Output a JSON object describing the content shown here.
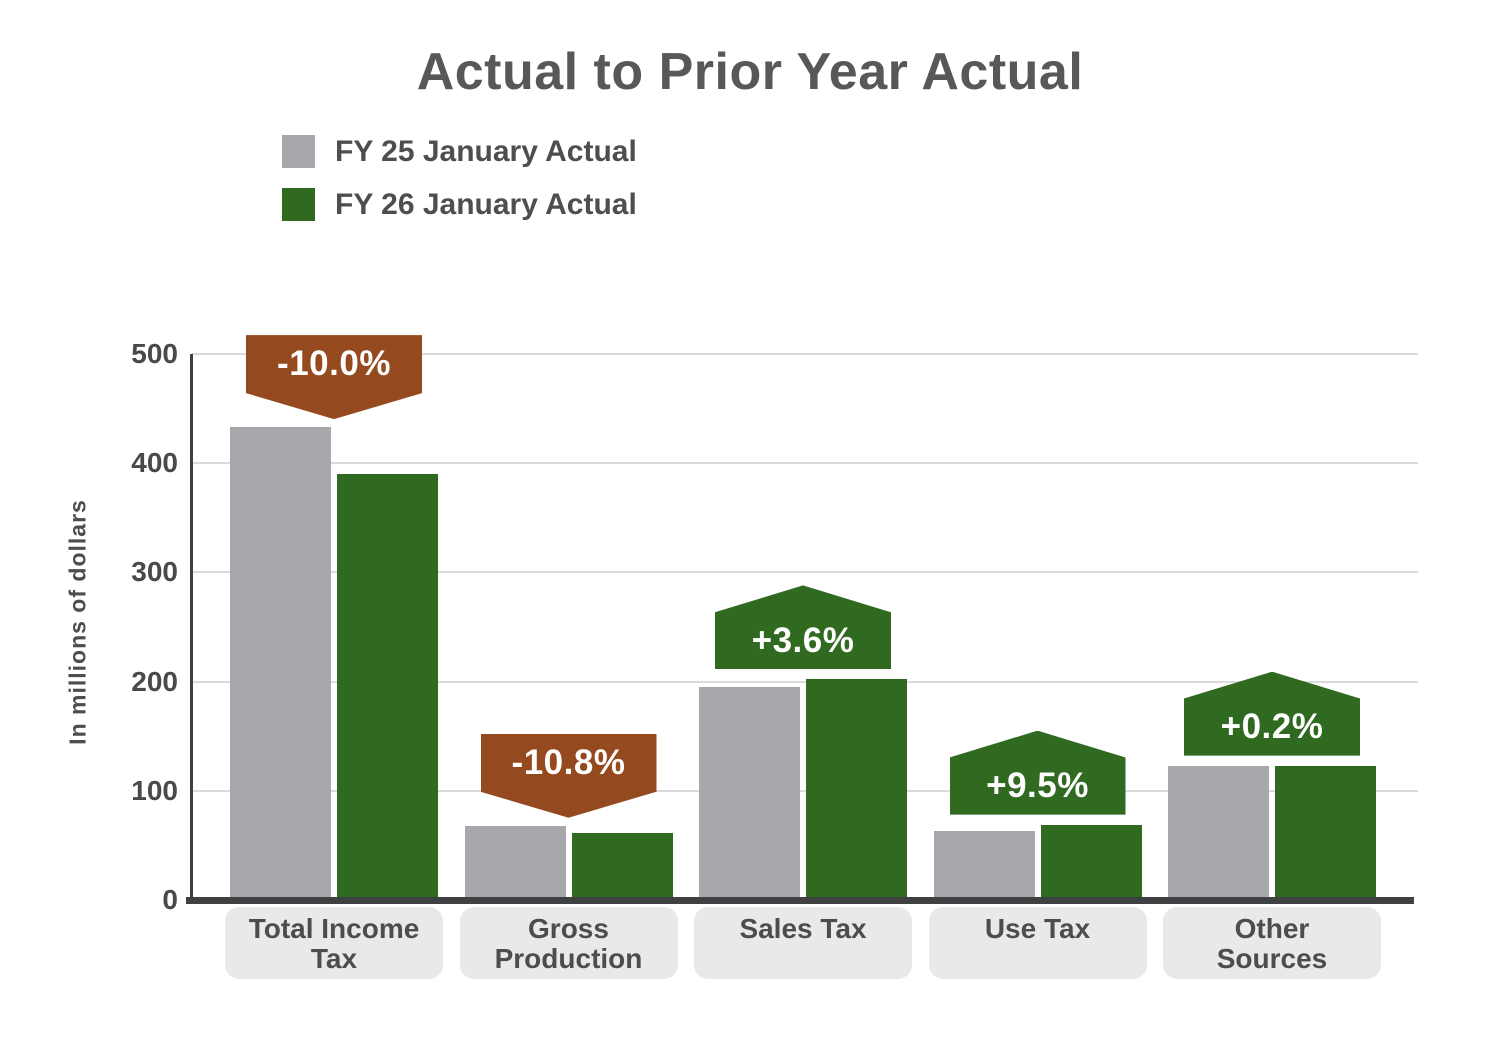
{
  "chart_data": {
    "type": "bar",
    "title": "Actual to Prior Year Actual",
    "ylabel": "In millions of dollars",
    "xlabel": "",
    "ylim": [
      0,
      500
    ],
    "yticks": [
      0,
      100,
      200,
      300,
      400,
      500
    ],
    "grid": true,
    "legend_position": "top-left",
    "categories": [
      "Total Income Tax",
      "Gross Production",
      "Sales Tax",
      "Use Tax",
      "Other Sources"
    ],
    "category_label_lines": [
      [
        "Total Income",
        "Tax"
      ],
      [
        "Gross",
        "Production"
      ],
      [
        "Sales Tax"
      ],
      [
        "Use Tax"
      ],
      [
        "Other",
        "Sources"
      ]
    ],
    "series": [
      {
        "name": "FY 25 January Actual",
        "color": "#a6a8ab",
        "values": [
          433,
          68,
          195,
          63,
          123
        ]
      },
      {
        "name": "FY 26 January Actual",
        "color": "#2f6a20",
        "values": [
          390,
          61,
          202,
          69,
          123
        ]
      }
    ],
    "callouts": [
      {
        "category": "Total Income Tax",
        "label": "-10.0%",
        "direction": "down",
        "color": "#944a1e"
      },
      {
        "category": "Gross Production",
        "label": "-10.8%",
        "direction": "down",
        "color": "#944a1e"
      },
      {
        "category": "Sales Tax",
        "label": "+3.6%",
        "direction": "up",
        "color": "#2f6a20"
      },
      {
        "category": "Use Tax",
        "label": "+9.5%",
        "direction": "up",
        "color": "#2f6a20"
      },
      {
        "category": "Other Sources",
        "label": "+0.2%",
        "direction": "up",
        "color": "#2f6a20"
      }
    ],
    "colors": {
      "grid": "#dadada",
      "axis": "#3f4042",
      "tick_text": "#48494b",
      "title_text": "#57585a",
      "category_box_bg": "#e9e9ea",
      "negative_callout": "#944a1e",
      "positive_callout": "#2f6a20"
    }
  }
}
